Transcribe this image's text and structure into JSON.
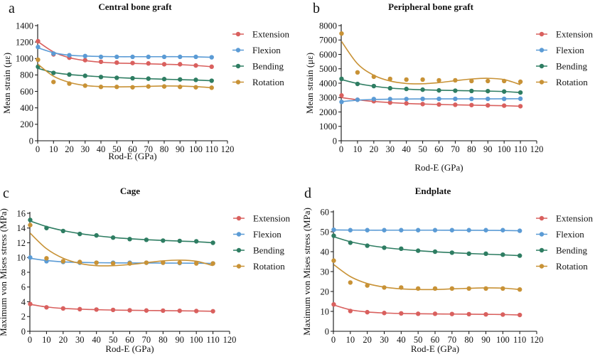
{
  "colors": {
    "Extension": "#d9605e",
    "Flexion": "#5b9bd5",
    "Bending": "#2e7d62",
    "Rotation": "#c89236"
  },
  "chart_data": [
    {
      "type": "scatter",
      "panel_letter": "a",
      "title": "Central bone graft",
      "xlabel": "Rod-E (GPa)",
      "ylabel": "Mean strain (με)",
      "xlim": [
        0,
        120
      ],
      "ylim": [
        0,
        1400
      ],
      "xticks": [
        0,
        10,
        20,
        30,
        40,
        50,
        60,
        70,
        80,
        90,
        100,
        110,
        120
      ],
      "yticks": [
        0,
        200,
        400,
        600,
        800,
        1000,
        1200,
        1400
      ],
      "x": [
        0.2,
        10,
        20,
        30,
        40,
        50,
        60,
        70,
        80,
        90,
        100,
        110
      ],
      "legend": "right",
      "series": [
        {
          "name": "Extension",
          "values": [
            1210,
            1050,
            1010,
            980,
            960,
            950,
            945,
            940,
            930,
            930,
            915,
            900
          ],
          "fit": [
            1205,
            1080,
            1010,
            975,
            955,
            945,
            940,
            935,
            930,
            925,
            915,
            900
          ]
        },
        {
          "name": "Flexion",
          "values": [
            1140,
            1060,
            1040,
            1030,
            1020,
            1020,
            1020,
            1020,
            1020,
            1020,
            1020,
            1015
          ],
          "fit": [
            1130,
            1070,
            1040,
            1030,
            1025,
            1022,
            1022,
            1022,
            1022,
            1022,
            1020,
            1015
          ]
        },
        {
          "name": "Bending",
          "values": [
            900,
            825,
            805,
            790,
            775,
            765,
            760,
            755,
            750,
            745,
            740,
            730
          ],
          "fit": [
            880,
            830,
            805,
            790,
            778,
            768,
            760,
            754,
            748,
            743,
            738,
            730
          ]
        },
        {
          "name": "Rotation",
          "values": [
            985,
            715,
            695,
            670,
            655,
            655,
            650,
            660,
            660,
            655,
            650,
            645
          ],
          "fit": [
            930,
            785,
            710,
            672,
            658,
            655,
            657,
            662,
            666,
            665,
            658,
            645
          ]
        }
      ]
    },
    {
      "type": "scatter",
      "panel_letter": "b",
      "title": "Peripheral bone graft",
      "xlabel": "Rod-E (GPa)",
      "ylabel": "Mean strain (με)",
      "xlim": [
        0,
        120
      ],
      "ylim": [
        0,
        8000
      ],
      "xticks": [
        0,
        10,
        20,
        30,
        40,
        50,
        60,
        70,
        80,
        90,
        100,
        110,
        120
      ],
      "yticks": [
        0,
        1000,
        2000,
        3000,
        4000,
        5000,
        6000,
        7000,
        8000
      ],
      "x": [
        0.2,
        10,
        20,
        30,
        40,
        50,
        60,
        70,
        80,
        90,
        100,
        110
      ],
      "legend": "right",
      "series": [
        {
          "name": "Extension",
          "values": [
            3150,
            2850,
            2750,
            2650,
            2600,
            2550,
            2520,
            2500,
            2480,
            2460,
            2440,
            2400
          ],
          "fit": [
            3000,
            2850,
            2730,
            2650,
            2590,
            2550,
            2520,
            2495,
            2475,
            2455,
            2435,
            2400
          ]
        },
        {
          "name": "Flexion",
          "values": [
            2700,
            2850,
            2900,
            2900,
            2900,
            2910,
            2910,
            2910,
            2910,
            2910,
            2910,
            2920
          ],
          "fit": [
            2720,
            2820,
            2870,
            2890,
            2900,
            2905,
            2910,
            2910,
            2910,
            2912,
            2915,
            2920
          ]
        },
        {
          "name": "Bending",
          "values": [
            4300,
            3950,
            3800,
            3650,
            3600,
            3550,
            3500,
            3480,
            3460,
            3450,
            3420,
            3350
          ],
          "fit": [
            4250,
            3980,
            3790,
            3660,
            3590,
            3540,
            3510,
            3490,
            3470,
            3450,
            3420,
            3350
          ]
        },
        {
          "name": "Rotation",
          "values": [
            7450,
            4750,
            4450,
            4300,
            4250,
            4250,
            4200,
            4200,
            4150,
            4150,
            4150,
            4100
          ],
          "fit": [
            6900,
            5350,
            4550,
            4150,
            3980,
            3960,
            4040,
            4170,
            4290,
            4340,
            4250,
            3900
          ]
        }
      ]
    },
    {
      "type": "scatter",
      "panel_letter": "c",
      "title": "Cage",
      "xlabel": "Rod-E (GPa)",
      "ylabel": "Maximum von Mises stress (MPa)",
      "xlim": [
        0,
        120
      ],
      "ylim": [
        0,
        16
      ],
      "xticks": [
        0,
        10,
        20,
        30,
        40,
        50,
        60,
        70,
        80,
        90,
        100,
        110,
        120
      ],
      "yticks": [
        0,
        2,
        4,
        6,
        8,
        10,
        12,
        14,
        16
      ],
      "x": [
        0.2,
        10,
        20,
        30,
        40,
        50,
        60,
        70,
        80,
        90,
        100,
        110
      ],
      "legend": "right",
      "series": [
        {
          "name": "Extension",
          "values": [
            3.7,
            3.25,
            3.1,
            3.0,
            2.95,
            2.9,
            2.85,
            2.82,
            2.8,
            2.78,
            2.75,
            2.72
          ],
          "fit": [
            3.65,
            3.3,
            3.1,
            3.0,
            2.93,
            2.88,
            2.85,
            2.82,
            2.8,
            2.78,
            2.75,
            2.72
          ]
        },
        {
          "name": "Flexion",
          "values": [
            10.0,
            9.5,
            9.4,
            9.3,
            9.3,
            9.3,
            9.3,
            9.3,
            9.3,
            9.25,
            9.25,
            9.2
          ],
          "fit": [
            9.9,
            9.6,
            9.42,
            9.34,
            9.3,
            9.28,
            9.27,
            9.26,
            9.25,
            9.24,
            9.23,
            9.2
          ]
        },
        {
          "name": "Bending",
          "values": [
            15.1,
            14.0,
            13.6,
            13.2,
            13.0,
            12.7,
            12.5,
            12.4,
            12.3,
            12.25,
            12.2,
            12.0
          ],
          "fit": [
            14.95,
            14.2,
            13.65,
            13.25,
            12.95,
            12.72,
            12.55,
            12.42,
            12.32,
            12.23,
            12.15,
            12.0
          ]
        },
        {
          "name": "Rotation",
          "values": [
            14.4,
            9.9,
            9.5,
            9.4,
            9.3,
            9.2,
            9.2,
            9.3,
            9.3,
            9.3,
            9.2,
            9.2
          ],
          "fit": [
            13.3,
            11.2,
            9.9,
            9.2,
            8.9,
            8.9,
            9.05,
            9.3,
            9.55,
            9.65,
            9.5,
            8.9
          ]
        }
      ]
    },
    {
      "type": "scatter",
      "panel_letter": "d",
      "title": "Endplate",
      "xlabel": "Rod-E (GPa)",
      "ylabel": "Maximum von Mises stress (MPa)",
      "xlim": [
        0,
        120
      ],
      "ylim": [
        0,
        60
      ],
      "xticks": [
        0,
        10,
        20,
        30,
        40,
        50,
        60,
        70,
        80,
        90,
        100,
        110,
        120
      ],
      "yticks": [
        0,
        10,
        20,
        30,
        40,
        50,
        60
      ],
      "x": [
        0.2,
        10,
        20,
        30,
        40,
        50,
        60,
        70,
        80,
        90,
        100,
        110
      ],
      "legend": "right",
      "series": [
        {
          "name": "Extension",
          "values": [
            13.5,
            10.2,
            9.6,
            9.2,
            9.0,
            8.8,
            8.8,
            8.7,
            8.6,
            8.5,
            8.4,
            8.2
          ],
          "fit": [
            13.2,
            10.8,
            9.7,
            9.2,
            8.95,
            8.8,
            8.72,
            8.66,
            8.6,
            8.52,
            8.42,
            8.2
          ]
        },
        {
          "name": "Flexion",
          "values": [
            51.0,
            50.8,
            50.8,
            50.8,
            50.8,
            50.8,
            50.8,
            50.8,
            50.8,
            50.8,
            50.8,
            50.5
          ],
          "fit": [
            50.9,
            50.85,
            50.8,
            50.8,
            50.8,
            50.8,
            50.8,
            50.78,
            50.75,
            50.7,
            50.65,
            50.5
          ]
        },
        {
          "name": "Bending",
          "values": [
            48.0,
            44.5,
            43.0,
            42.0,
            41.5,
            40.5,
            40.0,
            39.5,
            39.0,
            39.0,
            38.5,
            38.0
          ],
          "fit": [
            47.5,
            45.0,
            43.3,
            42.1,
            41.2,
            40.5,
            39.95,
            39.5,
            39.1,
            38.75,
            38.4,
            38.0
          ]
        },
        {
          "name": "Rotation",
          "values": [
            35.5,
            24.5,
            23.0,
            22.0,
            22.0,
            21.5,
            21.5,
            21.5,
            21.5,
            21.5,
            21.5,
            21.0
          ],
          "fit": [
            33.5,
            27.5,
            24.0,
            22.2,
            21.3,
            21.0,
            21.0,
            21.3,
            21.6,
            21.8,
            21.7,
            21.0
          ]
        }
      ]
    }
  ]
}
